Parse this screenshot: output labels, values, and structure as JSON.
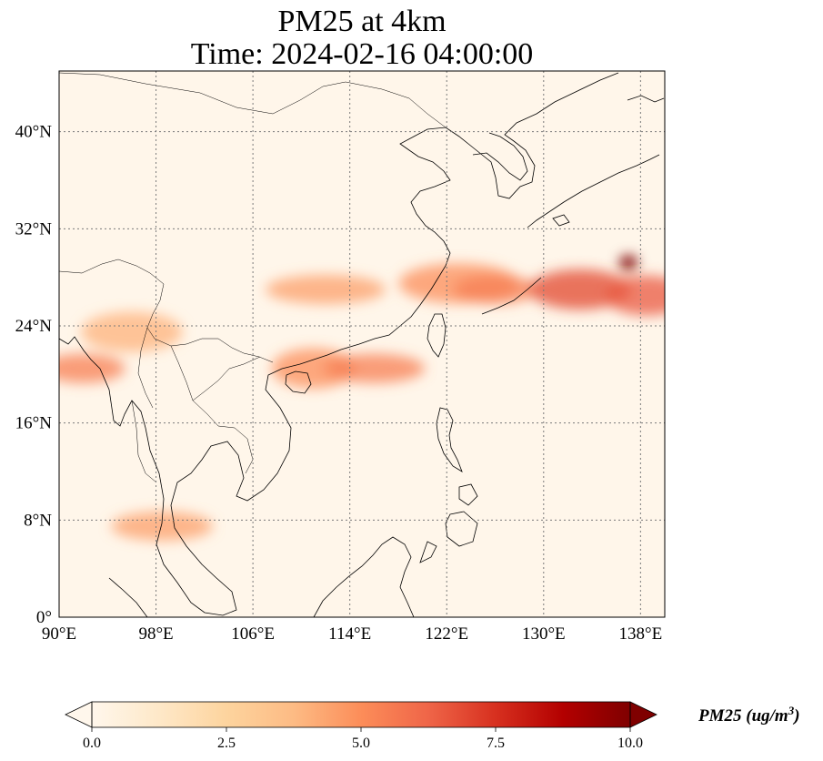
{
  "title": {
    "line1": "PM25 at 4km",
    "line2": "Time: 2024-02-16 04:00:00"
  },
  "map": {
    "lon_range": [
      90,
      140
    ],
    "lat_range": [
      0,
      45
    ],
    "gridlines": "dotted",
    "lon_ticks": [
      {
        "value": 90,
        "label": "90°E"
      },
      {
        "value": 98,
        "label": "98°E"
      },
      {
        "value": 106,
        "label": "106°E"
      },
      {
        "value": 114,
        "label": "114°E"
      },
      {
        "value": 122,
        "label": "122°E"
      },
      {
        "value": 130,
        "label": "130°E"
      },
      {
        "value": 138,
        "label": "138°E"
      }
    ],
    "lat_ticks": [
      {
        "value": 0,
        "label": "0°"
      },
      {
        "value": 8,
        "label": "8°N"
      },
      {
        "value": 16,
        "label": "16°N"
      },
      {
        "value": 24,
        "label": "24°N"
      },
      {
        "value": 32,
        "label": "32°N"
      },
      {
        "value": 40,
        "label": "40°N"
      }
    ],
    "field_plumes": [
      {
        "name": "western plume",
        "lon": 92,
        "lat": 20.5,
        "value": 5.5
      },
      {
        "name": "myanmar band",
        "lon": 96,
        "lat": 23.5,
        "value": 4.0
      },
      {
        "name": "south china band",
        "lon": 112,
        "lat": 27,
        "value": 4.5
      },
      {
        "name": "gulf of tonkin",
        "lon": 111,
        "lat": 20.5,
        "value": 5.0
      },
      {
        "name": "east of hainan",
        "lon": 116,
        "lat": 20.5,
        "value": 5.5
      },
      {
        "name": "taiwan strait",
        "lon": 123,
        "lat": 27.5,
        "value": 5.0
      },
      {
        "name": "east china sea",
        "lon": 126,
        "lat": 27,
        "value": 5.5
      },
      {
        "name": "ryukyu plume",
        "lon": 133,
        "lat": 27,
        "value": 7.0
      },
      {
        "name": "pacific hotspot",
        "lon": 137,
        "lat": 29.2,
        "value": 10.0
      },
      {
        "name": "pacific band",
        "lon": 138.5,
        "lat": 26.5,
        "value": 6.5
      },
      {
        "name": "malay pocket",
        "lon": 98.5,
        "lat": 7.5,
        "value": 4.5
      }
    ]
  },
  "colorbar": {
    "cmap": "OrRd",
    "range": [
      0.0,
      10.0
    ],
    "extend": "both",
    "tick_labels": [
      "0.0",
      "2.5",
      "5.0",
      "7.5",
      "10.0"
    ],
    "label_base": "PM25 (ug/m",
    "label_exp": "3",
    "label_close": ")"
  },
  "colors": {
    "cmap_stops": [
      "#fff7ec",
      "#fee8c8",
      "#fdd49e",
      "#fdbb84",
      "#fc8d59",
      "#ef6548",
      "#d7301f",
      "#b30000",
      "#7f0000"
    ],
    "coastline": "#000000",
    "gridline": "#7a7a7a"
  }
}
